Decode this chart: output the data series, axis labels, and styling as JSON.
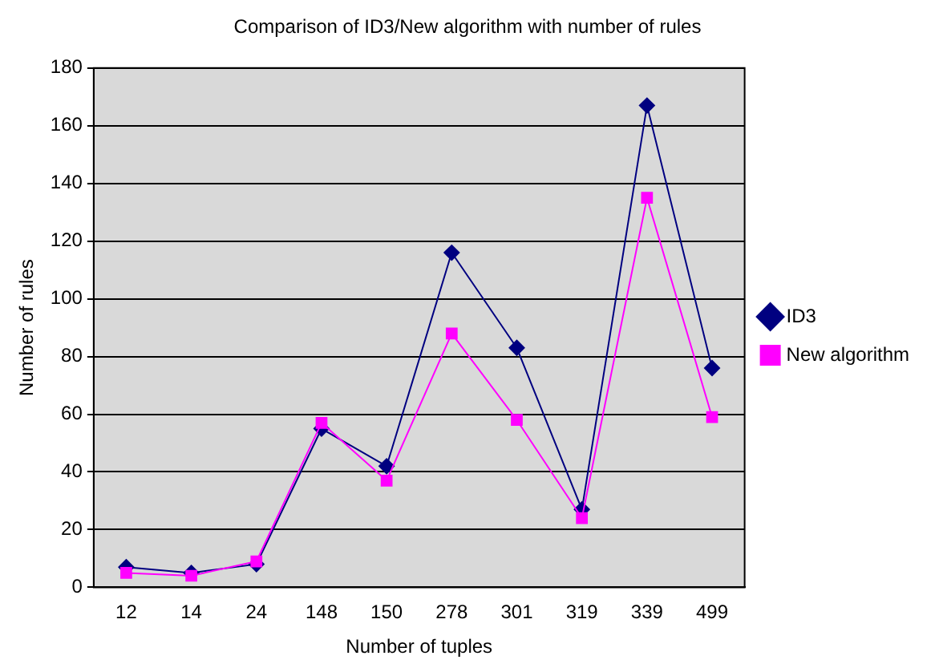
{
  "chart_data": {
    "type": "line",
    "title": "Comparison of ID3/New algorithm with number of rules",
    "xlabel": "Number of tuples",
    "ylabel": "Number of rules",
    "categories": [
      "12",
      "14",
      "24",
      "148",
      "150",
      "278",
      "301",
      "319",
      "339",
      "499"
    ],
    "series": [
      {
        "name": "ID3",
        "color": "#000080",
        "marker": "diamond",
        "values": [
          7,
          5,
          8,
          55,
          42,
          116,
          83,
          27,
          167,
          76
        ]
      },
      {
        "name": "New algorithm",
        "color": "#ff00ff",
        "marker": "square",
        "values": [
          5,
          4,
          9,
          57,
          37,
          88,
          58,
          24,
          135,
          59
        ]
      }
    ],
    "ylim": [
      0,
      180
    ],
    "yticks": [
      0,
      20,
      40,
      60,
      80,
      100,
      120,
      140,
      160,
      180
    ],
    "grid": "y",
    "legend": "right"
  }
}
